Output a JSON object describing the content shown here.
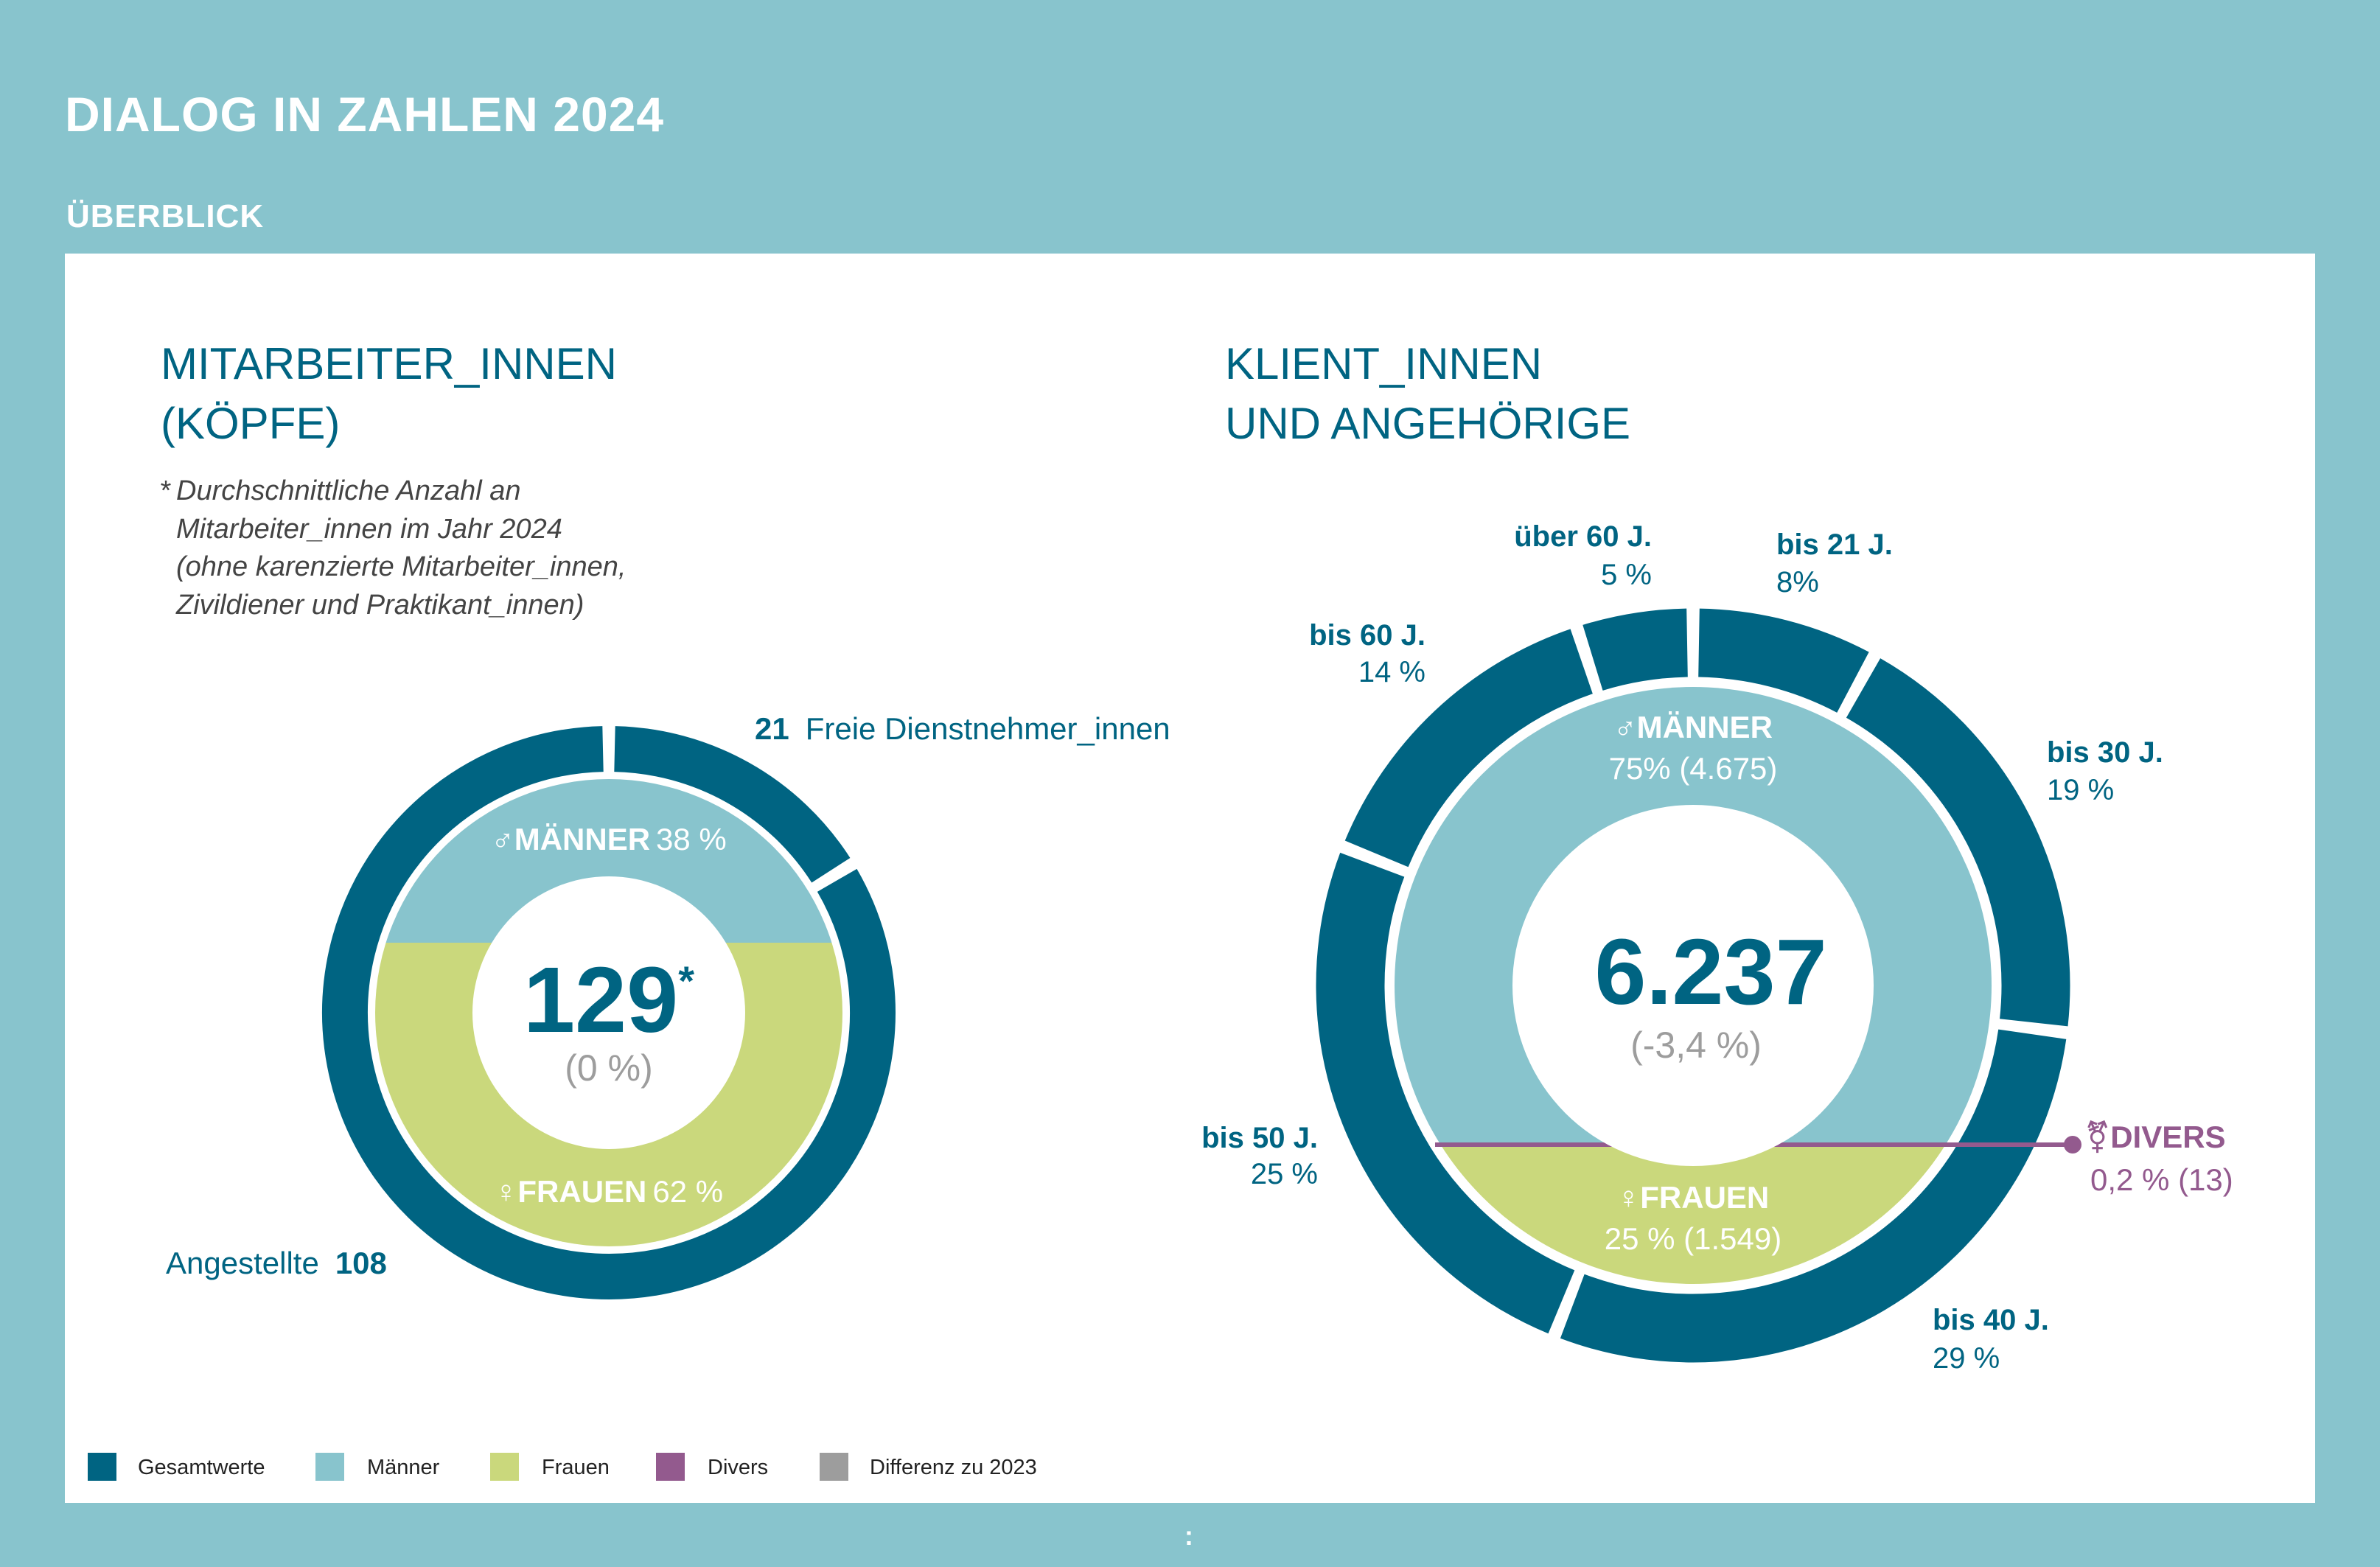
{
  "header": {
    "title": "DIALOG IN ZAHLEN 2024",
    "subtitle": "ÜBERBLICK"
  },
  "colors": {
    "background": "#88C4CD",
    "gesamt": "#006482",
    "maenner": "#88C4CD",
    "frauen": "#CAD87C",
    "divers": "#935A8E",
    "differenz": "#9D9D9D"
  },
  "chart_data": [
    {
      "type": "pie",
      "title_line1": "MITARBEITER_INNEN",
      "title_line2": "(KÖPFE)",
      "footnote": [
        "*",
        "Durchschnittliche Anzahl an",
        "Mitarbeiter_innen im Jahr 2024",
        "(ohne karenzierte Mitarbeiter_innen,",
        "Zivildiener und Praktikant_innen)"
      ],
      "total": "129",
      "total_mark": "*",
      "difference": "(0 %)",
      "outer_ring": [
        {
          "name": "Freie Dienstnehmer_innen",
          "value": 21,
          "value_label": "21"
        },
        {
          "name": "Angestellte",
          "value": 108,
          "value_label": "108"
        }
      ],
      "gender": [
        {
          "symbol": "♂",
          "name": "MÄNNER",
          "percent": 38,
          "label": "38 %"
        },
        {
          "symbol": "♀",
          "name": "FRAUEN",
          "percent": 62,
          "label": "62 %"
        }
      ]
    },
    {
      "type": "pie",
      "title_line1": "KLIENT_INNEN",
      "title_line2": "UND ANGEHÖRIGE",
      "total": "6.237",
      "difference": "(-3,4 %)",
      "outer_ring": [
        {
          "name": "bis 21 J.",
          "percent": 8,
          "label": "8%"
        },
        {
          "name": "bis 30 J.",
          "percent": 19,
          "label": "19 %"
        },
        {
          "name": "bis 40 J.",
          "percent": 29,
          "label": "29 %"
        },
        {
          "name": "bis 50 J.",
          "percent": 25,
          "label": "25 %"
        },
        {
          "name": "bis 60 J.",
          "percent": 14,
          "label": "14 %"
        },
        {
          "name": "über 60 J.",
          "percent": 5,
          "label": "5 %"
        }
      ],
      "gender": [
        {
          "symbol": "♂",
          "name": "MÄNNER",
          "percent": 75,
          "label": "75% (4.675)"
        },
        {
          "symbol": "♀",
          "name": "FRAUEN",
          "percent": 25,
          "label": "25 % (1.549)"
        },
        {
          "symbol": "⚧",
          "name": "DIVERS",
          "percent": 0.2,
          "label": "0,2 % (13)"
        }
      ]
    }
  ],
  "legend": [
    {
      "label": "Gesamtwerte",
      "color": "#006482"
    },
    {
      "label": "Männer",
      "color": "#88C4CD"
    },
    {
      "label": "Frauen",
      "color": "#CAD87C"
    },
    {
      "label": "Divers",
      "color": "#935A8E"
    },
    {
      "label": "Differenz zu 2023",
      "color": "#9D9D9D"
    }
  ],
  "pager": ":"
}
